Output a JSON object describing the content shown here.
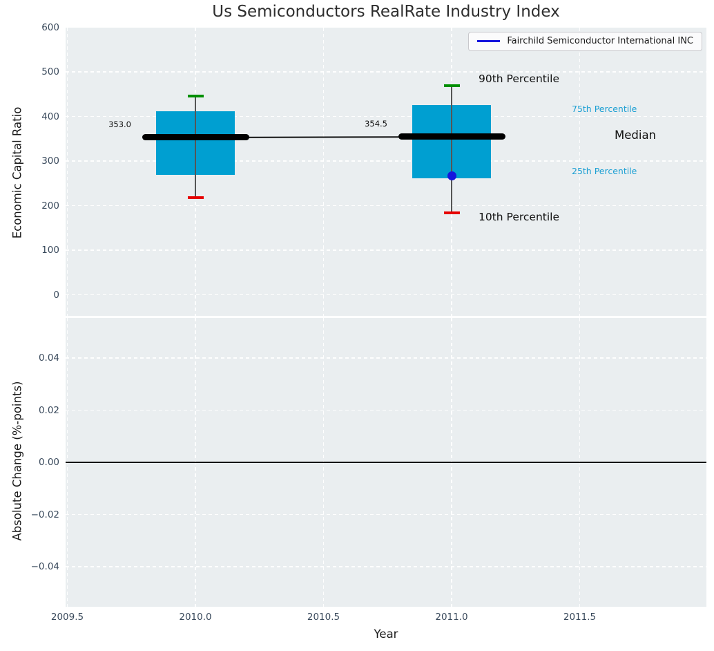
{
  "title": "Us Semiconductors RealRate Industry Index",
  "legend": {
    "label": "Fairchild Semiconductor International INC",
    "line_color": "#1515dd"
  },
  "axes": {
    "top": {
      "ylabel": "Economic Capital Ratio",
      "yticks": [
        {
          "label": "600",
          "v": 600
        },
        {
          "label": "500",
          "v": 500
        },
        {
          "label": "400",
          "v": 400
        },
        {
          "label": "300",
          "v": 300
        },
        {
          "label": "200",
          "v": 200
        },
        {
          "label": "100",
          "v": 100
        },
        {
          "label": "0",
          "v": 0
        }
      ]
    },
    "bottom": {
      "ylabel": "Absolute Change (%-points)",
      "yticks": [
        {
          "label": "0.04",
          "v": 0.04
        },
        {
          "label": "0.02",
          "v": 0.02
        },
        {
          "label": "0.00",
          "v": 0
        },
        {
          "label": "−0.02",
          "v": -0.02
        },
        {
          "label": "−0.04",
          "v": -0.04
        }
      ]
    },
    "x": {
      "label": "Year",
      "ticks": [
        {
          "label": "2009.5",
          "v": 2009.5
        },
        {
          "label": "2010.0",
          "v": 2010
        },
        {
          "label": "2010.5",
          "v": 2010.5
        },
        {
          "label": "2011.0",
          "v": 2011
        },
        {
          "label": "2011.5",
          "v": 2011.5
        }
      ]
    }
  },
  "annotations": {
    "p90": "90th Percentile",
    "p10": "10th Percentile",
    "p75": "75th Percentile",
    "p25": "25th Percentile",
    "median": "Median"
  },
  "colors": {
    "box": "#009fd1",
    "p90_cap": "#008f00",
    "p10_cap": "#e60000",
    "median_line": "#000000",
    "trend_line": "#111111",
    "whisker": "#555555",
    "company_point": "#1515dd",
    "percentile_label": "#1b9fd3",
    "plot_bg": "#eaeef0",
    "tick_label": "#3a4a5c"
  },
  "chart_data": [
    {
      "type": "box",
      "title": "Us Semiconductors RealRate Industry Index",
      "xlabel": "Year",
      "ylabel": "Economic Capital Ratio",
      "xlim": [
        2009.49,
        2012.0
      ],
      "ylim": [
        -46,
        600
      ],
      "grid": true,
      "legend_position": "upper right",
      "boxes": [
        {
          "year": 2010,
          "p10": 218,
          "p25": 269,
          "median": 353.0,
          "p75": 412,
          "p90": 446,
          "median_label": "353.0"
        },
        {
          "year": 2011,
          "p10": 184,
          "p25": 261,
          "median": 354.5,
          "p75": 425,
          "p90": 469,
          "median_label": "354.5"
        }
      ],
      "company_series": {
        "name": "Fairchild Semiconductor International INC",
        "points": [
          {
            "year": 2011,
            "value": 267
          }
        ]
      }
    },
    {
      "type": "line",
      "xlabel": "Year",
      "ylabel": "Absolute Change (%-points)",
      "xlim": [
        2009.49,
        2012.0
      ],
      "ylim": [
        -0.055,
        0.055
      ],
      "series": [],
      "zero_line": 0.0,
      "grid": true
    }
  ]
}
